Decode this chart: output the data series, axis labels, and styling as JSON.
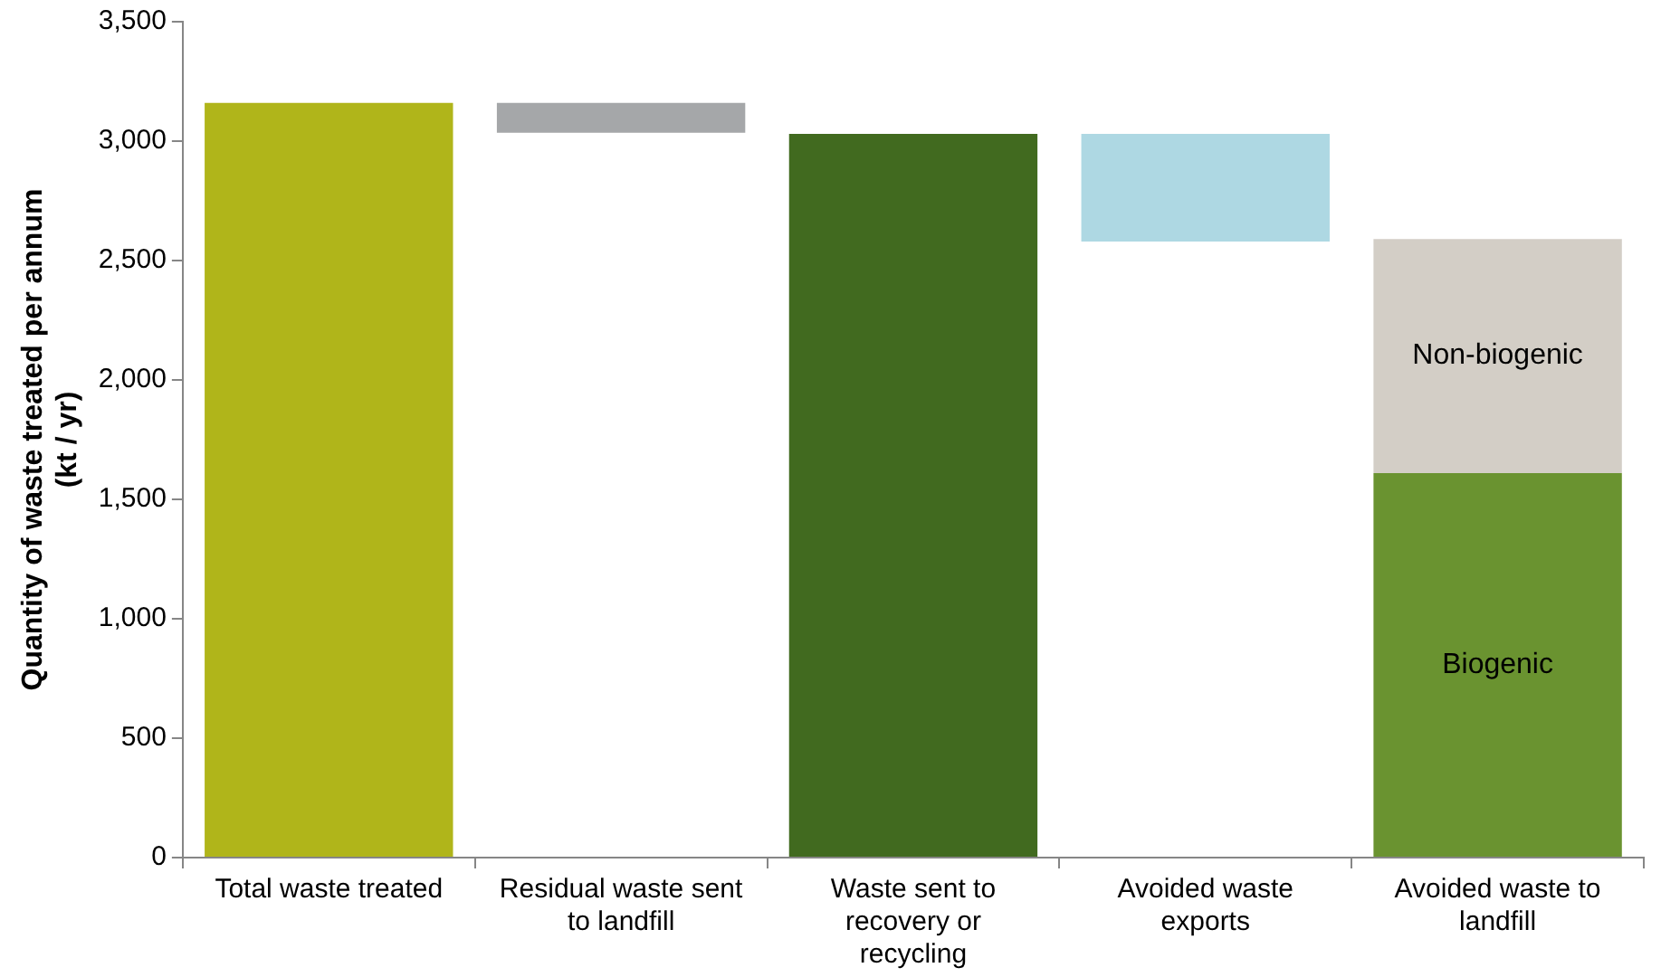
{
  "chart_data": {
    "type": "bar",
    "ylabel": "Quantity of waste treated per annum (kt / yr)",
    "categories": [
      "Total waste treated",
      "Residual waste sent to landfill",
      "Waste sent to recovery or recycling",
      "Avoided waste exports",
      "Avoided waste to landfill"
    ],
    "series": [
      {
        "colors": [
          "#b0b51a",
          "#a5a7a9",
          "#416a1f",
          "#aed8e3",
          null
        ],
        "values": [
          3160,
          125,
          3030,
          450,
          null
        ],
        "base": [
          0,
          3035,
          0,
          2580,
          null
        ]
      },
      {
        "name": "Biogenic",
        "color": "#6a9330",
        "values": [
          null,
          null,
          null,
          null,
          1610
        ]
      },
      {
        "name": "Non-biogenic",
        "color": "#d3cec6",
        "values": [
          null,
          null,
          null,
          null,
          980
        ],
        "base": [
          null,
          null,
          null,
          null,
          1610
        ]
      }
    ],
    "ylim": [
      0,
      3500
    ],
    "yticks": [
      0,
      500,
      {
        "value": 1000,
        "label": "1,000"
      },
      {
        "value": 1500,
        "label": "1,500"
      },
      {
        "value": 2000,
        "label": "2,000"
      },
      {
        "value": 2500,
        "label": "2,500"
      },
      {
        "value": 3000,
        "label": "3,000"
      },
      {
        "value": 3500,
        "label": "3,500"
      }
    ],
    "grid": false,
    "legend": false
  }
}
